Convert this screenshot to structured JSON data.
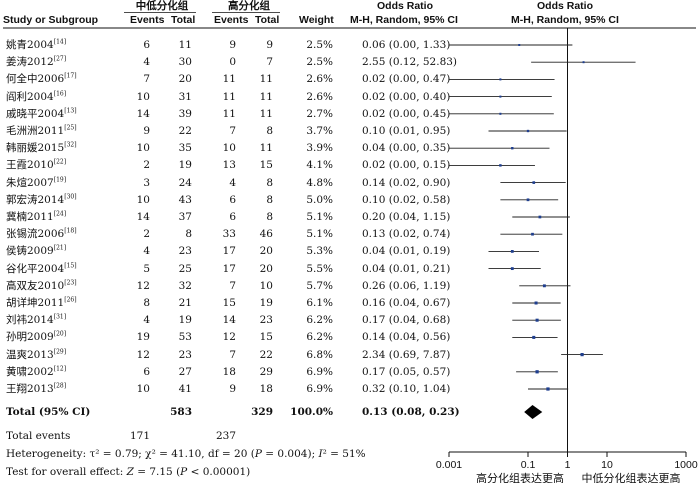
{
  "header": {
    "group1": "中低分化组",
    "group2": "高分化组",
    "or_title": "Odds Ratio",
    "or_title2": "Odds Ratio",
    "study": "Study or Subgroup",
    "events1": "Events",
    "total1": "Total",
    "events2": "Events",
    "total2": "Total",
    "weight": "Weight",
    "method": "M-H, Random, 95% CI",
    "method2": "M-H, Random, 95% CI"
  },
  "studies": [
    {
      "name": "姚青2004",
      "ref": "[14]",
      "e1": "6",
      "t1": "11",
      "e2": "9",
      "t2": "9",
      "weight": "2.5%",
      "ci": "0.06 (0.00, 1.33)"
    },
    {
      "name": "姜涛2012",
      "ref": "[27]",
      "e1": "4",
      "t1": "30",
      "e2": "0",
      "t2": "7",
      "weight": "2.5%",
      "ci": "2.55 (0.12, 52.83)"
    },
    {
      "name": "何全中2006",
      "ref": "[17]",
      "e1": "7",
      "t1": "20",
      "e2": "11",
      "t2": "11",
      "weight": "2.6%",
      "ci": "0.02 (0.00, 0.47)"
    },
    {
      "name": "阎利2004",
      "ref": "[16]",
      "e1": "10",
      "t1": "31",
      "e2": "11",
      "t2": "11",
      "weight": "2.6%",
      "ci": "0.02 (0.00, 0.40)"
    },
    {
      "name": "戚晓平2004",
      "ref": "[13]",
      "e1": "14",
      "t1": "39",
      "e2": "11",
      "t2": "11",
      "weight": "2.7%",
      "ci": "0.02 (0.00, 0.45)"
    },
    {
      "name": "毛洲洲2011",
      "ref": "[25]",
      "e1": "9",
      "t1": "22",
      "e2": "7",
      "t2": "8",
      "weight": "3.7%",
      "ci": "0.10 (0.01, 0.95)"
    },
    {
      "name": "韩丽媛2015",
      "ref": "[32]",
      "e1": "10",
      "t1": "35",
      "e2": "10",
      "t2": "11",
      "weight": "3.9%",
      "ci": "0.04 (0.00, 0.35)"
    },
    {
      "name": "王霞2010",
      "ref": "[22]",
      "e1": "2",
      "t1": "19",
      "e2": "13",
      "t2": "15",
      "weight": "4.1%",
      "ci": "0.02 (0.00, 0.15)"
    },
    {
      "name": "朱煊2007",
      "ref": "[19]",
      "e1": "3",
      "t1": "24",
      "e2": "4",
      "t2": "8",
      "weight": "4.8%",
      "ci": "0.14 (0.02, 0.90)"
    },
    {
      "name": "郭宏涛2014",
      "ref": "[30]",
      "e1": "10",
      "t1": "43",
      "e2": "6",
      "t2": "8",
      "weight": "5.0%",
      "ci": "0.10 (0.02, 0.58)"
    },
    {
      "name": "冀楠2011",
      "ref": "[24]",
      "e1": "14",
      "t1": "37",
      "e2": "6",
      "t2": "8",
      "weight": "5.1%",
      "ci": "0.20 (0.04, 1.15)"
    },
    {
      "name": "张锡流2006",
      "ref": "[18]",
      "e1": "2",
      "t1": "8",
      "e2": "33",
      "t2": "46",
      "weight": "5.1%",
      "ci": "0.13 (0.02, 0.74)"
    },
    {
      "name": "侯铸2009",
      "ref": "[21]",
      "e1": "4",
      "t1": "23",
      "e2": "17",
      "t2": "20",
      "weight": "5.3%",
      "ci": "0.04 (0.01, 0.19)"
    },
    {
      "name": "谷化平2004",
      "ref": "[15]",
      "e1": "5",
      "t1": "25",
      "e2": "17",
      "t2": "20",
      "weight": "5.5%",
      "ci": "0.04 (0.01, 0.21)"
    },
    {
      "name": "高双友2010",
      "ref": "[23]",
      "e1": "12",
      "t1": "32",
      "e2": "7",
      "t2": "10",
      "weight": "5.7%",
      "ci": "0.26 (0.06, 1.19)"
    },
    {
      "name": "胡详坤2011",
      "ref": "[26]",
      "e1": "8",
      "t1": "21",
      "e2": "15",
      "t2": "19",
      "weight": "6.1%",
      "ci": "0.16 (0.04, 0.67)"
    },
    {
      "name": "刘祎2014",
      "ref": "[31]",
      "e1": "4",
      "t1": "19",
      "e2": "14",
      "t2": "23",
      "weight": "6.2%",
      "ci": "0.17 (0.04, 0.68)"
    },
    {
      "name": "孙明2009",
      "ref": "[20]",
      "e1": "19",
      "t1": "53",
      "e2": "12",
      "t2": "15",
      "weight": "6.2%",
      "ci": "0.14 (0.04, 0.56)"
    },
    {
      "name": "温爽2013",
      "ref": "[29]",
      "e1": "12",
      "t1": "23",
      "e2": "7",
      "t2": "22",
      "weight": "6.8%",
      "ci": "2.34 (0.69, 7.87)"
    },
    {
      "name": "黄啸2002",
      "ref": "[12]",
      "e1": "6",
      "t1": "27",
      "e2": "18",
      "t2": "29",
      "weight": "6.9%",
      "ci": "0.17 (0.05, 0.57)"
    },
    {
      "name": "王翔2013",
      "ref": "[28]",
      "e1": "10",
      "t1": "41",
      "e2": "9",
      "t2": "18",
      "weight": "6.9%",
      "ci": "0.32 (0.10, 1.04)"
    }
  ],
  "total": {
    "label": "Total (95% CI)",
    "t1": "583",
    "t2": "329",
    "weight": "100.0%",
    "ci": "0.13 (0.08, 0.23)"
  },
  "events": {
    "label": "Total events",
    "e1": "171",
    "e2": "237"
  },
  "het_a": "Heterogeneity: τ",
  "het_b": "² = 0.79; χ",
  "het_c": "² = 41.10, df = 20 (",
  "het_d": "P",
  "het_e": " = 0.004); ",
  "het_f": "I",
  "het_g": "² = 51%",
  "oe_a": "Test for overall effect: ",
  "oe_b": "Z",
  "oe_c": " = 7.15 (",
  "oe_d": "P",
  "oe_e": " < 0.00001)",
  "axis": {
    "ticks": [
      "0.001",
      "0.1",
      "1",
      "10",
      "1000"
    ],
    "left_label": "高分化组表达更高",
    "right_label": "中低分化组表达更高"
  },
  "colors": {
    "marker": "#1f3f8f",
    "line": "#222222",
    "diamond": "#000000"
  },
  "chart_data": {
    "type": "forest",
    "scale": "log",
    "xlim": [
      0.001,
      1000
    ],
    "x_ticks": [
      0.001,
      0.1,
      1,
      10,
      1000
    ],
    "reference_line": 1,
    "xlabel_left": "高分化组表达更高",
    "xlabel_right": "中低分化组表达更高",
    "studies": [
      {
        "name": "姚青2004",
        "or": 0.06,
        "lo": 0.0,
        "hi": 1.33,
        "weight": 2.5
      },
      {
        "name": "姜涛2012",
        "or": 2.55,
        "lo": 0.12,
        "hi": 52.83,
        "weight": 2.5
      },
      {
        "name": "何全中2006",
        "or": 0.02,
        "lo": 0.0,
        "hi": 0.47,
        "weight": 2.6
      },
      {
        "name": "阎利2004",
        "or": 0.02,
        "lo": 0.0,
        "hi": 0.4,
        "weight": 2.6
      },
      {
        "name": "戚晓平2004",
        "or": 0.02,
        "lo": 0.0,
        "hi": 0.45,
        "weight": 2.7
      },
      {
        "name": "毛洲洲2011",
        "or": 0.1,
        "lo": 0.01,
        "hi": 0.95,
        "weight": 3.7
      },
      {
        "name": "韩丽媛2015",
        "or": 0.04,
        "lo": 0.0,
        "hi": 0.35,
        "weight": 3.9
      },
      {
        "name": "王霞2010",
        "or": 0.02,
        "lo": 0.0,
        "hi": 0.15,
        "weight": 4.1
      },
      {
        "name": "朱煊2007",
        "or": 0.14,
        "lo": 0.02,
        "hi": 0.9,
        "weight": 4.8
      },
      {
        "name": "郭宏涛2014",
        "or": 0.1,
        "lo": 0.02,
        "hi": 0.58,
        "weight": 5.0
      },
      {
        "name": "冀楠2011",
        "or": 0.2,
        "lo": 0.04,
        "hi": 1.15,
        "weight": 5.1
      },
      {
        "name": "张锡流2006",
        "or": 0.13,
        "lo": 0.02,
        "hi": 0.74,
        "weight": 5.1
      },
      {
        "name": "侯铸2009",
        "or": 0.04,
        "lo": 0.01,
        "hi": 0.19,
        "weight": 5.3
      },
      {
        "name": "谷化平2004",
        "or": 0.04,
        "lo": 0.01,
        "hi": 0.21,
        "weight": 5.5
      },
      {
        "name": "高双友2010",
        "or": 0.26,
        "lo": 0.06,
        "hi": 1.19,
        "weight": 5.7
      },
      {
        "name": "胡详坤2011",
        "or": 0.16,
        "lo": 0.04,
        "hi": 0.67,
        "weight": 6.1
      },
      {
        "name": "刘祎2014",
        "or": 0.17,
        "lo": 0.04,
        "hi": 0.68,
        "weight": 6.2
      },
      {
        "name": "孙明2009",
        "or": 0.14,
        "lo": 0.04,
        "hi": 0.56,
        "weight": 6.2
      },
      {
        "name": "温爽2013",
        "or": 2.34,
        "lo": 0.69,
        "hi": 7.87,
        "weight": 6.8
      },
      {
        "name": "黄啸2002",
        "or": 0.17,
        "lo": 0.05,
        "hi": 0.57,
        "weight": 6.9
      },
      {
        "name": "王翔2013",
        "or": 0.32,
        "lo": 0.1,
        "hi": 1.04,
        "weight": 6.9
      }
    ],
    "pooled": {
      "or": 0.13,
      "lo": 0.08,
      "hi": 0.23
    }
  }
}
